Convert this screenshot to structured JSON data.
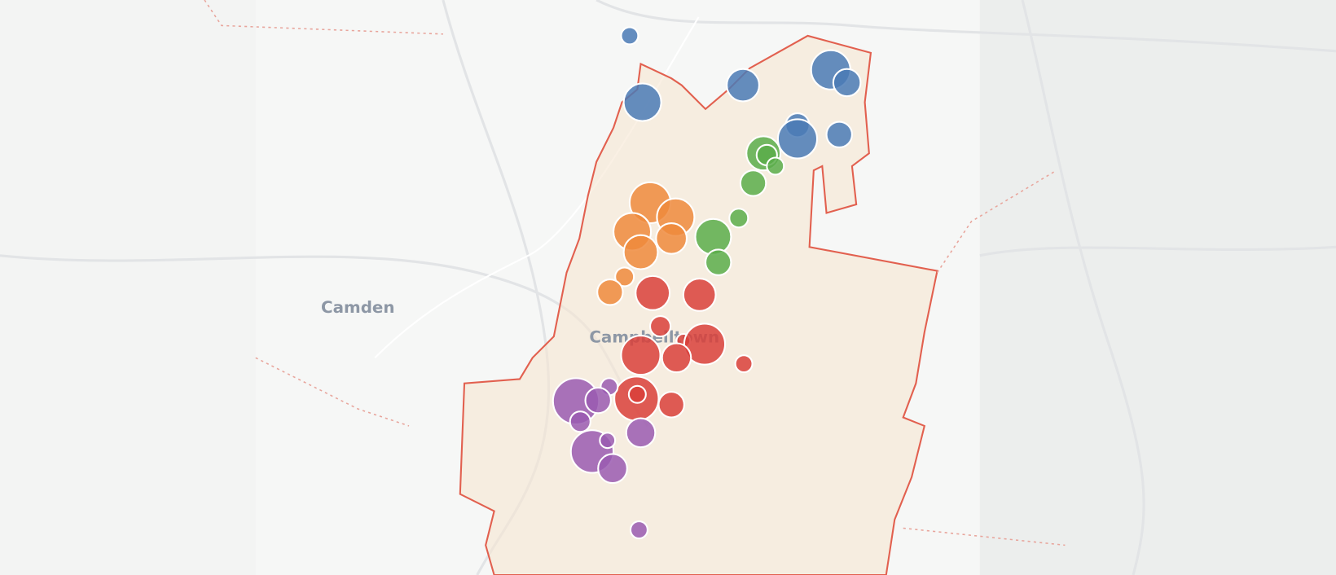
{
  "map": {
    "places": [
      "Camden",
      "Campbelltown"
    ]
  }
}
